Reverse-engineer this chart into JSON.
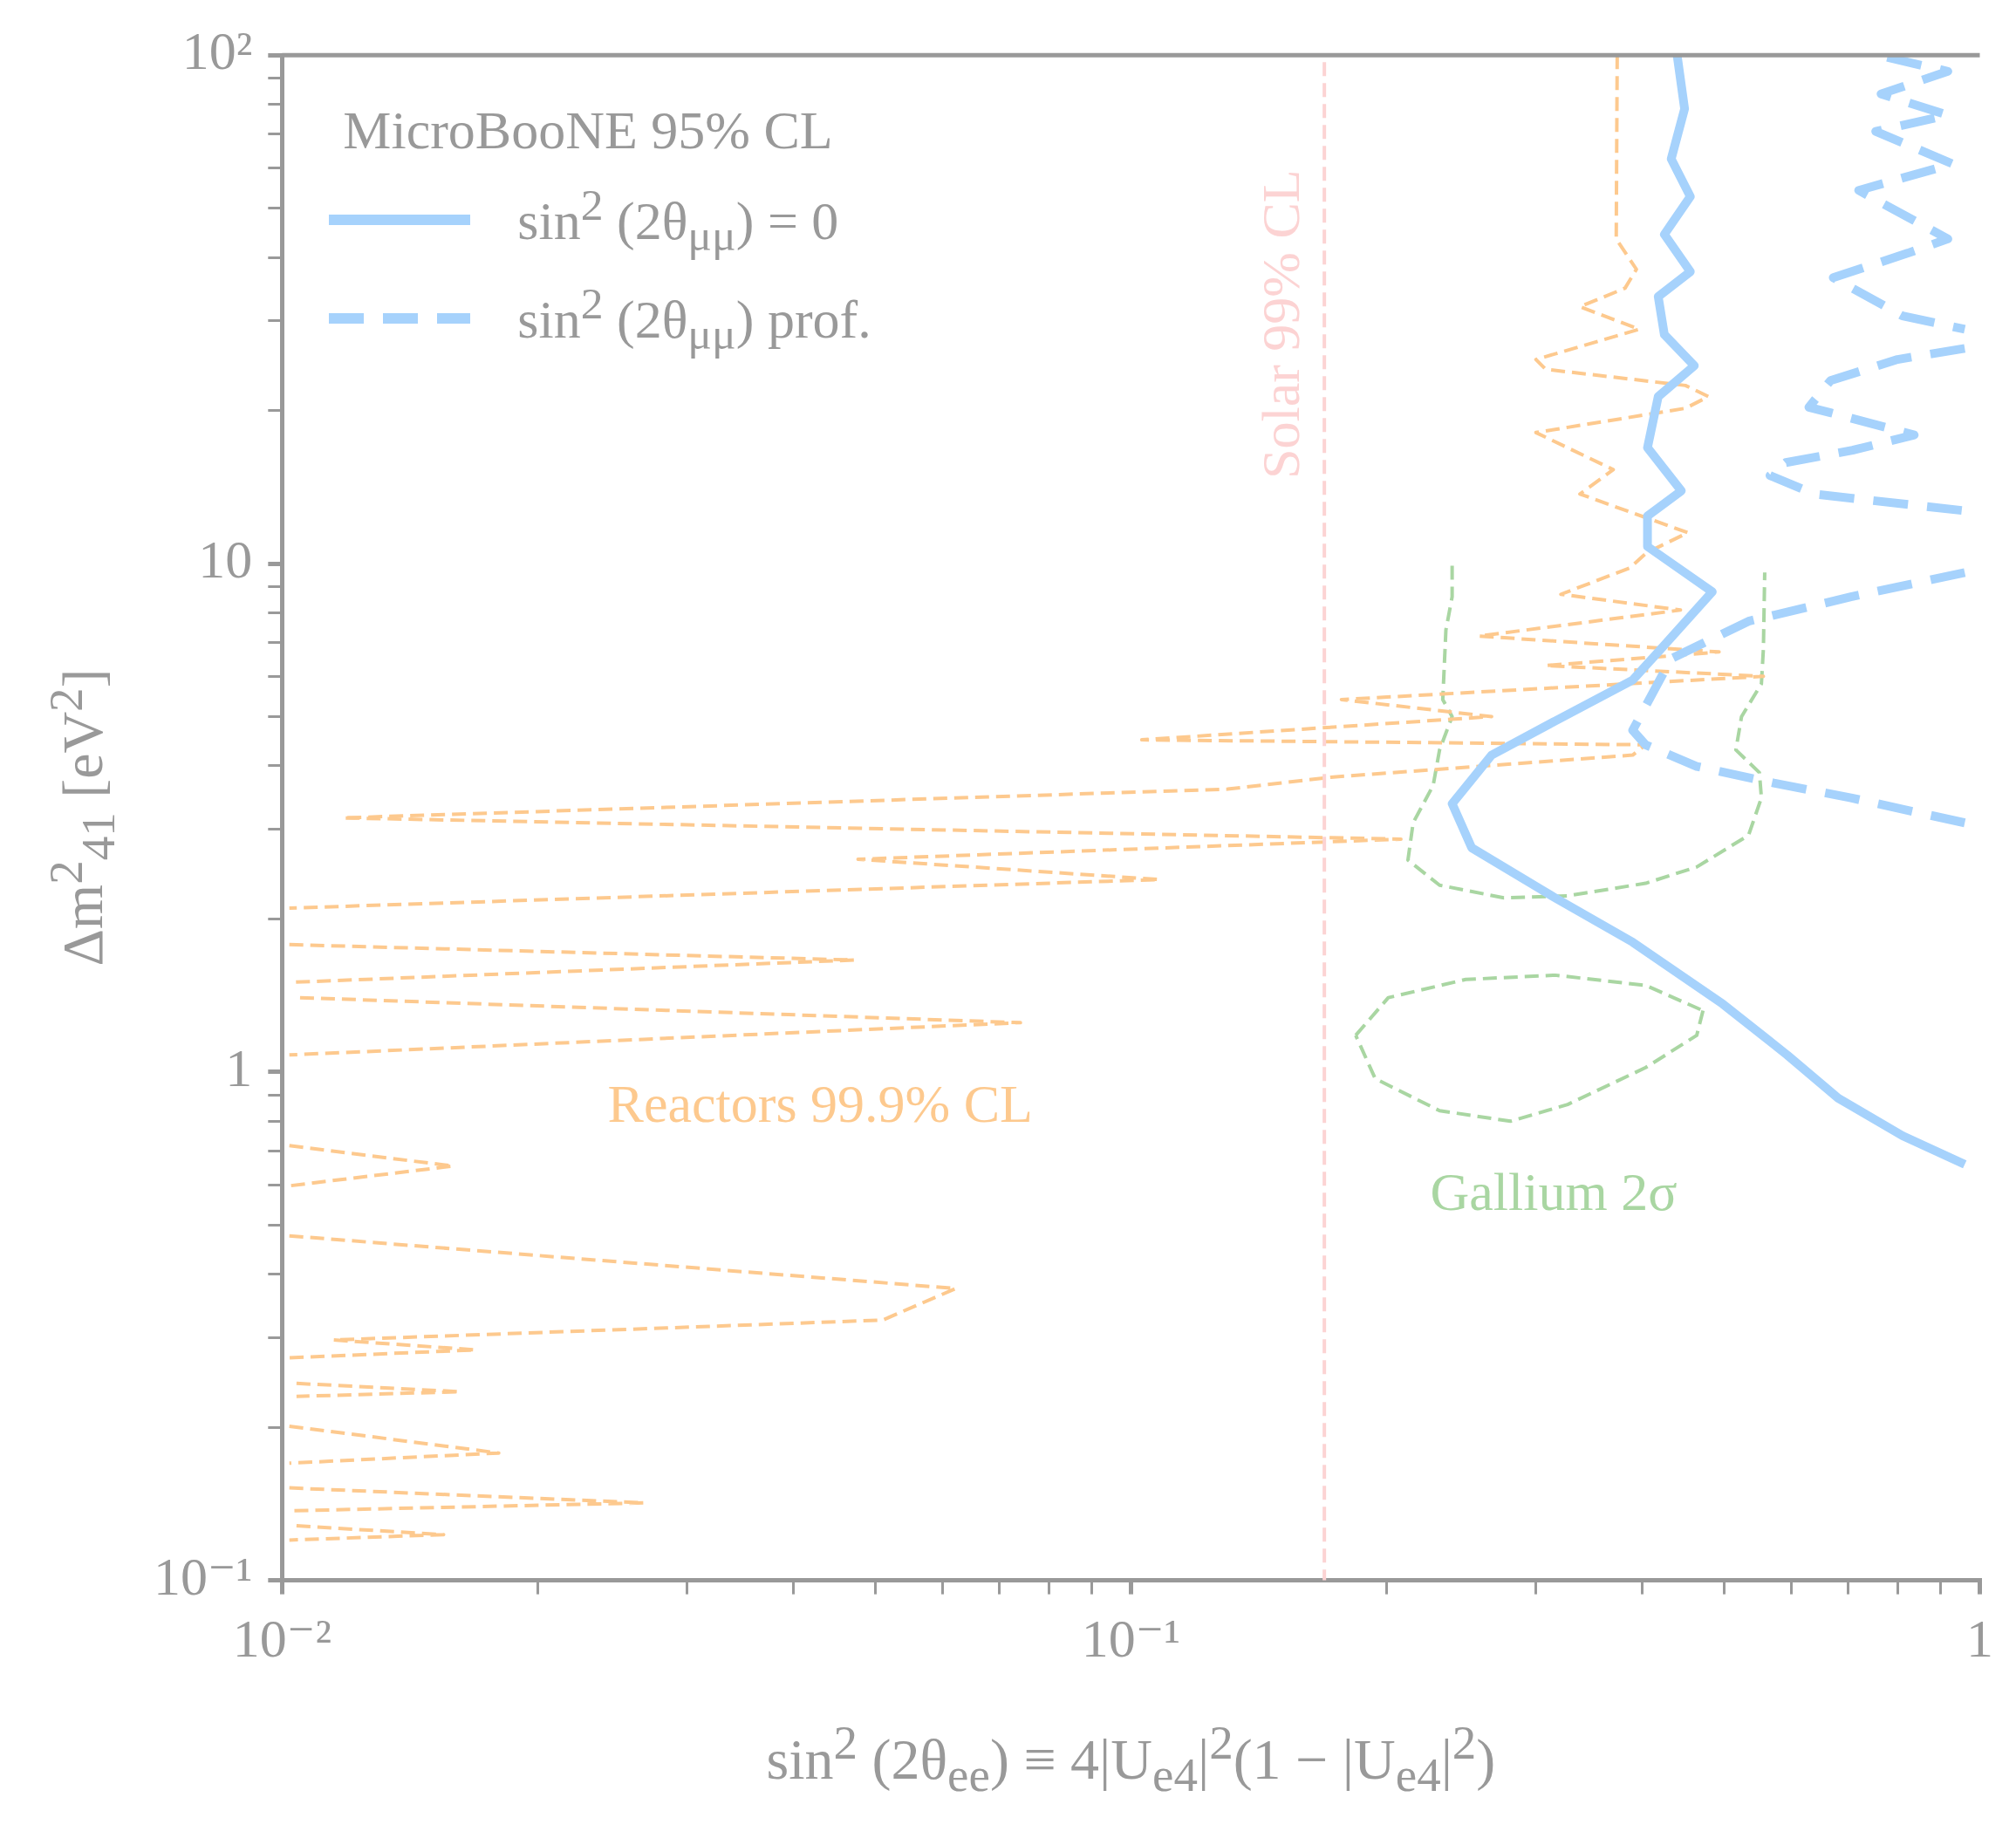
{
  "chart_data": {
    "type": "line",
    "xlabel": "sin$^{2}$ (2θ$_{ee}$) ≡ 4|U$_{e4}$|$^{2}$(1 − |U$_{e4}$|$^{2}$)",
    "ylabel": "Δm$^{2}$$_{41}$ [eV$^{2}$]",
    "legend_title": "MicroBooNE 95% CL",
    "legend": "top left",
    "log": "xy",
    "xlim": [
      0.01,
      1
    ],
    "ylim": [
      0.1,
      100
    ],
    "xticks": [
      {
        "value": 0.01,
        "label": "10⁻²"
      },
      {
        "value": 0.02,
        "label": null
      },
      {
        "value": 0.03,
        "label": null
      },
      {
        "value": 0.04,
        "label": null
      },
      {
        "value": 0.05,
        "label": null
      },
      {
        "value": 0.06,
        "label": null
      },
      {
        "value": 0.07,
        "label": null
      },
      {
        "value": 0.08,
        "label": null
      },
      {
        "value": 0.09,
        "label": null
      },
      {
        "value": 0.1,
        "label": "10⁻¹"
      },
      {
        "value": 0.2,
        "label": null
      },
      {
        "value": 0.3,
        "label": null
      },
      {
        "value": 0.4,
        "label": null
      },
      {
        "value": 0.5,
        "label": null
      },
      {
        "value": 0.6,
        "label": null
      },
      {
        "value": 0.7,
        "label": null
      },
      {
        "value": 0.8,
        "label": null
      },
      {
        "value": 0.9,
        "label": null
      },
      1
    ],
    "yticks": [
      {
        "value": 0.1,
        "label": "10⁻¹"
      },
      {
        "value": 0.2,
        "label": null
      },
      {
        "value": 0.3,
        "label": null
      },
      {
        "value": 0.4,
        "label": null
      },
      {
        "value": 0.5,
        "label": null
      },
      {
        "value": 0.6,
        "label": null
      },
      {
        "value": 0.7,
        "label": null
      },
      {
        "value": 0.8,
        "label": null
      },
      {
        "value": 0.9,
        "label": null
      },
      1,
      {
        "value": 2,
        "label": null
      },
      {
        "value": 3,
        "label": null
      },
      {
        "value": 4,
        "label": null
      },
      {
        "value": 5,
        "label": null
      },
      {
        "value": 6,
        "label": null
      },
      {
        "value": 7,
        "label": null
      },
      {
        "value": 8,
        "label": null
      },
      {
        "value": 9,
        "label": null
      },
      10,
      {
        "value": 20,
        "label": null
      },
      {
        "value": 30,
        "label": null
      },
      {
        "value": 40,
        "label": null
      },
      {
        "value": 50,
        "label": null
      },
      {
        "value": 60,
        "label": null
      },
      {
        "value": 70,
        "label": null
      },
      {
        "value": 80,
        "label": null
      },
      {
        "value": 90,
        "label": null
      },
      {
        "value": 100,
        "label": "10²"
      }
    ],
    "ref_lines": [
      {
        "axis": "x",
        "value": 0.169,
        "label": "Solar 99% CL",
        "color": "#fcd3d3",
        "line_style": "dashed"
      }
    ],
    "series": [
      {
        "name": "sin$^{2}$ (2θ$_{μμ}$) = 0",
        "color": "#a6d2fc",
        "line_style": "solid",
        "x": [
          0.44,
          0.449,
          0.433,
          0.456,
          0.425,
          0.456,
          0.418,
          0.425,
          0.461,
          0.418,
          0.406,
          0.445,
          0.406,
          0.406,
          0.484,
          0.418,
          0.39,
          0.316,
          0.266,
          0.239,
          0.252,
          0.316,
          0.39,
          0.498,
          0.593,
          0.681,
          0.811,
          0.96
        ],
        "values": [
          100,
          78.4,
          62.5,
          52.7,
          44.4,
          37.5,
          33.5,
          28.2,
          24.5,
          21.3,
          16.9,
          13.9,
          12.4,
          10.8,
          8.8,
          6.7,
          5.9,
          4.9,
          4.2,
          3.37,
          2.76,
          2.2,
          1.8,
          1.36,
          1.08,
          0.888,
          0.749,
          0.658
        ]
      },
      {
        "name": "sin$^{2}$ (2θ$_{μμ}$)  prof.",
        "color": "#a6d2fc",
        "line_style": "dashed",
        "x": [
          0.96,
          0.705,
          0.534,
          0.433,
          0.39,
          0.404,
          0.464,
          0.572,
          0.705,
          0.96
        ],
        "values": [
          9.6,
          8.6,
          7.7,
          6.5,
          4.7,
          4.4,
          3.99,
          3.7,
          3.46,
          3.09
        ]
      },
      {
        "name": "Reactors 99.9% CL",
        "color": "#fdc98e",
        "line_style": "dashed",
        "x": [
          0.374,
          0.373,
          0.394,
          0.382,
          0.338,
          0.397,
          0.3,
          0.308,
          0.45,
          0.479,
          0.45,
          0.3,
          0.37,
          0.338,
          0.453,
          0.405,
          0.387,
          0.321,
          0.444,
          0.257,
          0.493,
          0.308,
          0.556,
          0.177,
          0.266,
          0.103,
          0.404,
          0.39,
          0.172,
          0.13,
          0.0118,
          0.208,
          0.0477,
          0.108,
          0.0102
        ],
        "values": [
          100,
          43.5,
          37.9,
          34.8,
          32,
          28.9,
          25.2,
          24.1,
          22.4,
          21.3,
          20.2,
          18.1,
          15.3,
          13.7,
          11.5,
          10.5,
          9.8,
          8.7,
          8.1,
          7.2,
          6.7,
          6.3,
          6,
          5.4,
          5,
          4.5,
          4.4,
          4.2,
          3.8,
          3.6,
          3.16,
          2.87,
          2.62,
          2.39,
          2.1
        ]
      },
      {
        "name": "Gallium 2σ",
        "color": "#a9d6a2",
        "line_style": "dashed",
        "x": [
          0.239,
          0.239,
          0.235,
          0.233,
          0.239,
          0.231,
          0.227,
          0.215,
          0.212,
          0.231,
          0.275,
          0.327,
          0.404,
          0.464,
          0.534,
          0.553,
          0.55,
          0.516,
          0.524,
          0.553,
          0.556,
          0.558
        ],
        "values": [
          9.9,
          8.6,
          7.4,
          5.4,
          5,
          4.3,
          3.66,
          3.09,
          2.61,
          2.33,
          2.2,
          2.22,
          2.35,
          2.53,
          2.92,
          3.46,
          3.88,
          4.3,
          5,
          5.8,
          6.8,
          9.6
        ]
      },
      {
        "color": "#a6d2fc",
        "line_style": "dashed",
        "x": [
          0.778,
          0.917,
          0.765,
          0.917,
          0.754,
          0.929,
          0.72,
          0.917,
          0.823,
          0.672,
          0.811,
          0.96
        ],
        "values": [
          99,
          92.9,
          83.9,
          76.2,
          70.8,
          61.1,
          54.2,
          43.5,
          40.8,
          36.5,
          30.7,
          28.9
        ]
      },
      {
        "color": "#a6d2fc",
        "line_style": "dashed",
        "x": [
          0.96,
          0.8,
          0.667,
          0.629,
          0.667,
          0.837,
          0.708,
          0.591,
          0.566,
          0.638,
          0.96
        ],
        "values": [
          26.5,
          25.2,
          22.9,
          20.3,
          19.8,
          17.9,
          16.7,
          15.8,
          14.9,
          13.7,
          12.7
        ]
      },
      {
        "color": "#fdc98e",
        "line_style": "dashed",
        "x": [
          0.0102,
          0.0472,
          0.0102
        ],
        "values": [
          1.78,
          1.66,
          1.5
        ]
      },
      {
        "color": "#fdc98e",
        "line_style": "dashed",
        "x": [
          0.0105,
          0.0741,
          0.0102
        ],
        "values": [
          1.4,
          1.25,
          1.08
        ]
      },
      {
        "color": "#fdc98e",
        "line_style": "dashed",
        "x": [
          0.0102,
          0.0159,
          0.0102
        ],
        "values": [
          0.716,
          0.653,
          0.597
        ]
      },
      {
        "color": "#fdc98e",
        "line_style": "dashed",
        "x": [
          0.0102,
          0.0622,
          0.051,
          0.0115,
          0.0169,
          0.0102
        ],
        "values": [
          0.476,
          0.375,
          0.325,
          0.297,
          0.284,
          0.274
        ]
      },
      {
        "color": "#fdc98e",
        "line_style": "dashed",
        "x": [
          0.0104,
          0.0162,
          0.0104
        ],
        "values": [
          0.244,
          0.235,
          0.23
        ]
      },
      {
        "color": "#fdc98e",
        "line_style": "dashed",
        "x": [
          0.0102,
          0.018,
          0.0102
        ],
        "values": [
          0.201,
          0.178,
          0.17
        ]
      },
      {
        "color": "#fdc98e",
        "line_style": "dashed",
        "x": [
          0.0102,
          0.0267,
          0.0102
        ],
        "values": [
          0.152,
          0.142,
          0.137
        ]
      },
      {
        "color": "#fdc98e",
        "line_style": "dashed",
        "x": [
          0.0104,
          0.0155,
          0.0102
        ],
        "values": [
          0.128,
          0.123,
          0.12
        ]
      },
      {
        "color": "#a9d6a2",
        "line_style": "dashed",
        "x": [
          0.184,
          0.201,
          0.248,
          0.316,
          0.404,
          0.472
        ],
        "values": [
          1.18,
          1.4,
          1.52,
          1.55,
          1.48,
          1.32
        ]
      },
      {
        "color": "#a9d6a2",
        "line_style": "dashed",
        "x": [
          0.472,
          0.464,
          0.404,
          0.327,
          0.28,
          0.231,
          0.194,
          0.184
        ],
        "values": [
          1.32,
          1.18,
          1.02,
          0.863,
          0.8,
          0.839,
          0.97,
          1.18
        ]
      }
    ]
  }
}
